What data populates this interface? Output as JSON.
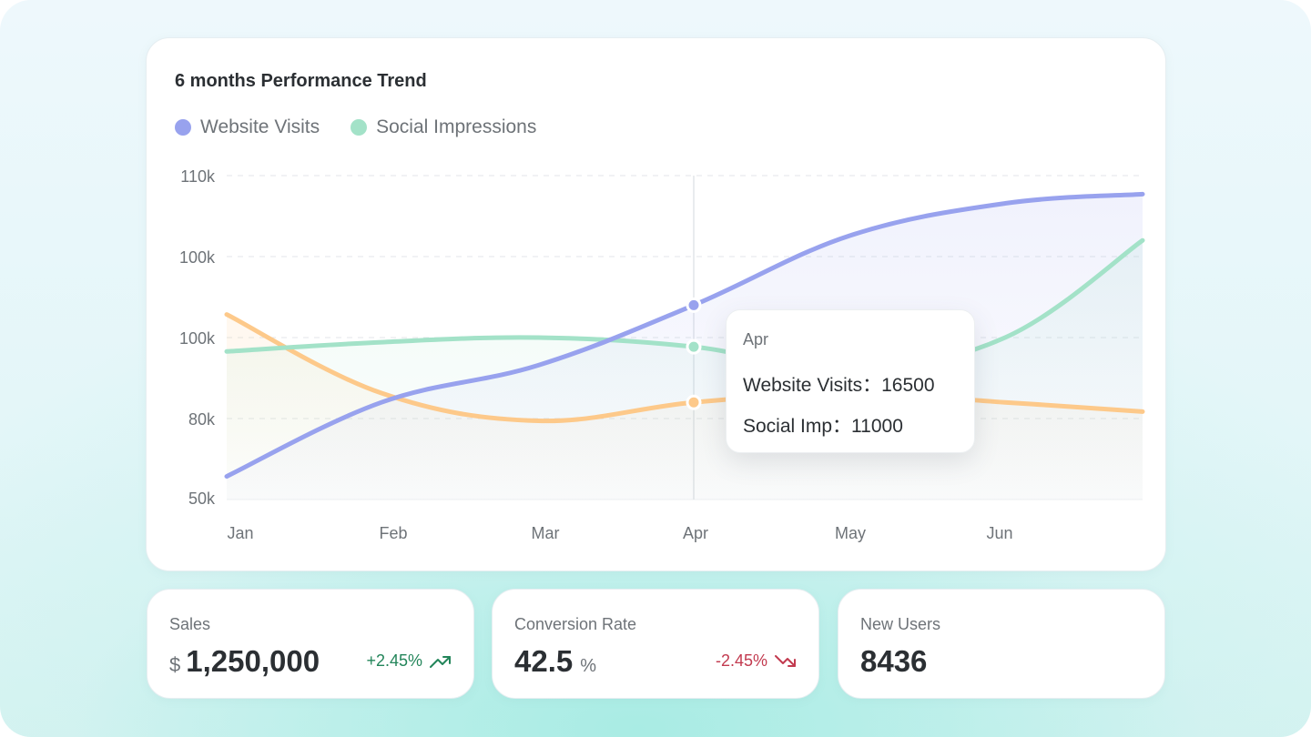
{
  "chart": {
    "title": "6 months Performance Trend",
    "legend": [
      {
        "label": "Website Visits",
        "color": "#98a2ee"
      },
      {
        "label": "Social Impressions",
        "color": "#a3e2c8"
      }
    ],
    "tooltip": {
      "month": "Apr",
      "line1": "Website Visits：16500",
      "line2": "Social Imp：11000"
    }
  },
  "chart_data": {
    "type": "line",
    "x": [
      "Jan",
      "Feb",
      "Mar",
      "Apr",
      "May",
      "Jun"
    ],
    "y_tick_labels": [
      "110k",
      "100k",
      "100k",
      "80k",
      "50k"
    ],
    "grid": "horizontal dashed",
    "legend_position": "top-left",
    "series": [
      {
        "name": "Website Visits",
        "color": "#98a2ee",
        "values": [
          55,
          71,
          79,
          92,
          107,
          114
        ],
        "end_value": 116
      },
      {
        "name": "Social Impressions",
        "color": "#a3e2c8",
        "values": [
          82,
          84,
          85,
          83,
          78,
          85
        ],
        "end_value": 106
      },
      {
        "color": "#fdc98a",
        "values": [
          90,
          73,
          67,
          71,
          73,
          71
        ],
        "end_value": 69
      }
    ],
    "highlight_index": 3
  },
  "stats": {
    "sales": {
      "label": "Sales",
      "prefix": "$",
      "value": "1,250,000",
      "change": "+2.45%",
      "trend": "up"
    },
    "conversion": {
      "label": "Conversion Rate",
      "value": "42.5",
      "suffix": "%",
      "change": "-2.45%",
      "trend": "down"
    },
    "users": {
      "label": "New Users",
      "value": "8436"
    }
  },
  "colors": {
    "up": "#23855a",
    "down": "#c23a4f",
    "grid": "#e3e6e8"
  },
  "icons": {
    "trend_up": "trend-up-icon",
    "trend_down": "trend-down-icon"
  }
}
